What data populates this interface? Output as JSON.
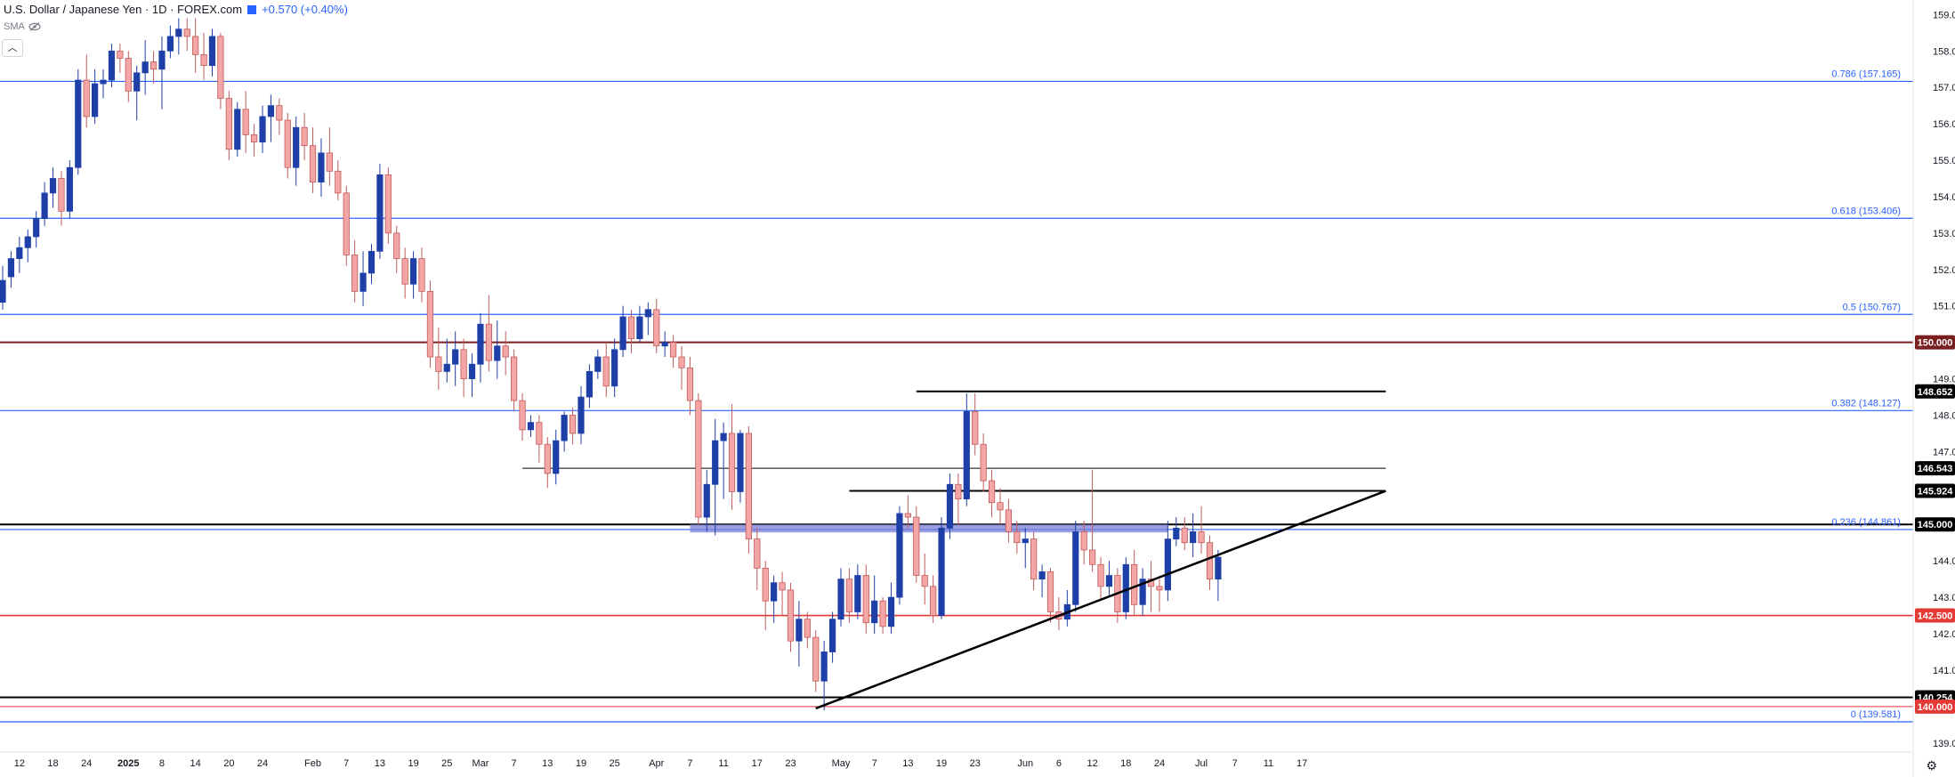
{
  "header": {
    "symbol": "U.S. Dollar / Japanese Yen · 1D · FOREX.com",
    "change": "+0.570 (+0.40%)",
    "indicator": "SMA",
    "collapse_icon": "chevron-up-icon",
    "visibility_icon": "eye-off-icon",
    "settings_icon": "gear-icon"
  },
  "colors": {
    "bull": "#1e3fa8",
    "bear": "#f4a6a6",
    "bear_border": "#c05b5b",
    "fib": "#2962ff",
    "support_red": "#e53935",
    "resistance_dark_red": "#7a1f1f",
    "level_black": "#000000",
    "zone": "#7b7fd6"
  },
  "chart_data": {
    "type": "candlestick",
    "ylim": [
      138.75,
      159.4
    ],
    "yticks": [
      "139.000",
      "140.000",
      "141.000",
      "142.000",
      "143.000",
      "144.000",
      "145.000",
      "146.000",
      "147.000",
      "148.000",
      "149.000",
      "150.000",
      "151.000",
      "152.000",
      "153.000",
      "154.000",
      "155.000",
      "156.000",
      "157.000",
      "158.000",
      "159.000"
    ],
    "xticks": [
      {
        "label": "12",
        "i": 2
      },
      {
        "label": "18",
        "i": 6
      },
      {
        "label": "24",
        "i": 10
      },
      {
        "label": "2025",
        "i": 15,
        "bold": true
      },
      {
        "label": "8",
        "i": 19
      },
      {
        "label": "14",
        "i": 23
      },
      {
        "label": "20",
        "i": 27
      },
      {
        "label": "24",
        "i": 31
      },
      {
        "label": "Feb",
        "i": 37
      },
      {
        "label": "7",
        "i": 41
      },
      {
        "label": "13",
        "i": 45
      },
      {
        "label": "19",
        "i": 49
      },
      {
        "label": "25",
        "i": 53
      },
      {
        "label": "Mar",
        "i": 57
      },
      {
        "label": "7",
        "i": 61
      },
      {
        "label": "13",
        "i": 65
      },
      {
        "label": "19",
        "i": 69
      },
      {
        "label": "25",
        "i": 73
      },
      {
        "label": "Apr",
        "i": 78
      },
      {
        "label": "7",
        "i": 82
      },
      {
        "label": "11",
        "i": 86
      },
      {
        "label": "17",
        "i": 90
      },
      {
        "label": "23",
        "i": 94
      },
      {
        "label": "May",
        "i": 100
      },
      {
        "label": "7",
        "i": 104
      },
      {
        "label": "13",
        "i": 108
      },
      {
        "label": "19",
        "i": 112
      },
      {
        "label": "23",
        "i": 116
      },
      {
        "label": "Jun",
        "i": 122
      },
      {
        "label": "6",
        "i": 126
      },
      {
        "label": "12",
        "i": 130
      },
      {
        "label": "18",
        "i": 134
      },
      {
        "label": "24",
        "i": 138
      },
      {
        "label": "Jul",
        "i": 143
      },
      {
        "label": "7",
        "i": 147
      },
      {
        "label": "11",
        "i": 151
      },
      {
        "label": "17",
        "i": 155
      }
    ],
    "candles": [
      [
        151.1,
        151.7,
        150.9,
        152.1
      ],
      [
        151.8,
        152.3,
        151.5,
        152.5
      ],
      [
        152.3,
        152.6,
        151.9,
        152.9
      ],
      [
        152.6,
        152.9,
        152.2,
        153.1
      ],
      [
        152.9,
        153.4,
        152.6,
        153.6
      ],
      [
        153.4,
        154.1,
        153.2,
        154.4
      ],
      [
        154.1,
        154.5,
        153.7,
        154.8
      ],
      [
        154.5,
        153.6,
        153.2,
        154.7
      ],
      [
        153.6,
        154.8,
        153.4,
        155.0
      ],
      [
        154.8,
        157.2,
        154.6,
        157.5
      ],
      [
        157.2,
        156.2,
        155.9,
        157.9
      ],
      [
        156.2,
        157.1,
        156.0,
        157.5
      ],
      [
        157.1,
        157.2,
        156.7,
        157.5
      ],
      [
        157.2,
        158.0,
        157.0,
        158.2
      ],
      [
        158.0,
        157.8,
        157.4,
        158.2
      ],
      [
        157.8,
        156.9,
        156.6,
        158.0
      ],
      [
        156.9,
        157.4,
        156.1,
        157.6
      ],
      [
        157.4,
        157.7,
        156.8,
        158.3
      ],
      [
        157.7,
        157.5,
        157.1,
        158.0
      ],
      [
        157.5,
        158.0,
        156.4,
        158.4
      ],
      [
        158.0,
        158.4,
        157.8,
        158.7
      ],
      [
        158.4,
        158.6,
        157.9,
        158.9
      ],
      [
        158.6,
        158.4,
        158.0,
        158.9
      ],
      [
        158.4,
        157.9,
        157.4,
        158.9
      ],
      [
        157.9,
        157.6,
        157.2,
        158.5
      ],
      [
        157.6,
        158.4,
        157.3,
        158.6
      ],
      [
        158.4,
        156.7,
        156.4,
        158.5
      ],
      [
        156.7,
        155.3,
        155.0,
        156.9
      ],
      [
        155.3,
        156.4,
        155.1,
        156.6
      ],
      [
        156.4,
        155.7,
        155.2,
        156.9
      ],
      [
        155.7,
        155.5,
        155.1,
        156.0
      ],
      [
        155.5,
        156.2,
        155.2,
        156.5
      ],
      [
        156.2,
        156.5,
        155.5,
        156.8
      ],
      [
        156.5,
        156.1,
        155.7,
        156.7
      ],
      [
        156.1,
        154.8,
        154.5,
        156.3
      ],
      [
        154.8,
        155.9,
        154.3,
        156.2
      ],
      [
        155.9,
        155.4,
        155.0,
        156.3
      ],
      [
        155.4,
        154.4,
        154.1,
        155.9
      ],
      [
        154.4,
        155.2,
        154.0,
        155.6
      ],
      [
        155.2,
        154.7,
        154.3,
        155.9
      ],
      [
        154.7,
        154.1,
        153.9,
        155.0
      ],
      [
        154.1,
        152.4,
        152.1,
        154.3
      ],
      [
        152.4,
        151.4,
        151.1,
        152.8
      ],
      [
        151.4,
        151.9,
        151.0,
        152.5
      ],
      [
        151.9,
        152.5,
        151.6,
        152.7
      ],
      [
        152.5,
        154.6,
        152.3,
        154.9
      ],
      [
        154.6,
        153.0,
        152.7,
        154.8
      ],
      [
        153.0,
        152.3,
        151.9,
        153.2
      ],
      [
        152.3,
        151.6,
        151.2,
        152.6
      ],
      [
        151.6,
        152.3,
        151.2,
        152.5
      ],
      [
        152.3,
        151.4,
        151.1,
        152.6
      ],
      [
        151.4,
        149.6,
        149.3,
        151.7
      ],
      [
        149.6,
        149.2,
        148.7,
        150.4
      ],
      [
        149.2,
        149.4,
        148.9,
        150.1
      ],
      [
        149.4,
        149.8,
        148.8,
        150.3
      ],
      [
        149.8,
        149.0,
        148.5,
        150.1
      ],
      [
        149.0,
        149.4,
        148.5,
        149.7
      ],
      [
        149.4,
        150.5,
        148.9,
        150.8
      ],
      [
        150.5,
        149.5,
        149.2,
        151.3
      ],
      [
        149.5,
        149.9,
        149.0,
        150.6
      ],
      [
        149.9,
        149.6,
        149.1,
        150.3
      ],
      [
        149.6,
        148.4,
        148.1,
        149.8
      ],
      [
        148.4,
        147.6,
        147.3,
        148.6
      ],
      [
        147.6,
        147.8,
        147.4,
        148.0
      ],
      [
        147.8,
        147.2,
        146.7,
        148.0
      ],
      [
        147.2,
        146.4,
        146.0,
        147.4
      ],
      [
        146.4,
        147.3,
        146.1,
        147.6
      ],
      [
        147.3,
        148.0,
        147.0,
        148.1
      ],
      [
        148.0,
        147.5,
        147.2,
        148.2
      ],
      [
        147.5,
        148.5,
        147.2,
        148.8
      ],
      [
        148.5,
        149.2,
        148.2,
        149.4
      ],
      [
        149.2,
        149.6,
        149.0,
        149.8
      ],
      [
        149.6,
        148.8,
        148.5,
        150.0
      ],
      [
        148.8,
        149.8,
        148.5,
        150.1
      ],
      [
        149.8,
        150.7,
        149.6,
        151.0
      ],
      [
        150.7,
        150.1,
        149.7,
        150.9
      ],
      [
        150.1,
        150.7,
        150.0,
        151.0
      ],
      [
        150.7,
        150.9,
        150.2,
        151.1
      ],
      [
        150.9,
        149.9,
        149.7,
        151.2
      ],
      [
        149.9,
        150.0,
        149.6,
        150.3
      ],
      [
        150.0,
        149.6,
        149.3,
        150.2
      ],
      [
        149.6,
        149.3,
        148.7,
        149.9
      ],
      [
        149.3,
        148.4,
        148.0,
        149.6
      ],
      [
        148.4,
        145.2,
        145.0,
        148.6
      ],
      [
        145.2,
        146.1,
        144.8,
        146.5
      ],
      [
        146.1,
        147.3,
        144.7,
        147.9
      ],
      [
        147.3,
        147.5,
        145.7,
        147.8
      ],
      [
        147.5,
        145.9,
        145.4,
        148.3
      ],
      [
        145.9,
        147.5,
        145.6,
        147.6
      ],
      [
        147.5,
        144.6,
        144.2,
        147.7
      ],
      [
        144.6,
        143.8,
        143.2,
        144.9
      ],
      [
        143.8,
        142.9,
        142.1,
        144.0
      ],
      [
        142.9,
        143.4,
        142.3,
        143.6
      ],
      [
        143.4,
        143.2,
        142.5,
        143.7
      ],
      [
        143.2,
        141.8,
        141.5,
        143.4
      ],
      [
        141.8,
        142.4,
        141.1,
        142.9
      ],
      [
        142.4,
        141.9,
        141.6,
        142.6
      ],
      [
        141.9,
        140.7,
        140.4,
        142.1
      ],
      [
        140.7,
        141.5,
        139.9,
        141.8
      ],
      [
        141.5,
        142.4,
        141.2,
        142.6
      ],
      [
        142.4,
        143.5,
        142.2,
        143.8
      ],
      [
        143.5,
        142.6,
        142.3,
        143.8
      ],
      [
        142.6,
        143.6,
        142.4,
        143.9
      ],
      [
        143.6,
        142.3,
        142.0,
        143.9
      ],
      [
        142.3,
        142.9,
        142.0,
        143.6
      ],
      [
        142.9,
        142.2,
        142.0,
        143.0
      ],
      [
        142.2,
        143.0,
        142.0,
        143.4
      ],
      [
        143.0,
        145.3,
        142.8,
        145.5
      ],
      [
        145.3,
        145.2,
        144.9,
        145.8
      ],
      [
        145.2,
        143.6,
        143.4,
        145.5
      ],
      [
        143.6,
        143.3,
        142.8,
        144.2
      ],
      [
        143.3,
        142.5,
        142.3,
        143.6
      ],
      [
        142.5,
        144.9,
        142.4,
        145.2
      ],
      [
        144.9,
        146.1,
        144.6,
        146.4
      ],
      [
        146.1,
        145.7,
        145.0,
        146.4
      ],
      [
        145.7,
        148.1,
        145.5,
        148.6
      ],
      [
        148.1,
        147.2,
        146.9,
        148.6
      ],
      [
        147.2,
        146.2,
        145.9,
        147.5
      ],
      [
        146.2,
        145.6,
        145.2,
        146.5
      ],
      [
        145.6,
        145.4,
        145.0,
        146.0
      ],
      [
        145.4,
        144.8,
        144.5,
        145.7
      ],
      [
        144.8,
        144.5,
        144.2,
        145.1
      ],
      [
        144.5,
        144.6,
        143.8,
        144.9
      ],
      [
        144.6,
        143.5,
        143.2,
        144.8
      ],
      [
        143.5,
        143.7,
        143.0,
        143.9
      ],
      [
        143.7,
        142.6,
        142.3,
        143.8
      ],
      [
        142.6,
        142.4,
        142.1,
        143.0
      ],
      [
        142.4,
        142.8,
        142.2,
        143.2
      ],
      [
        142.8,
        144.8,
        142.6,
        145.1
      ],
      [
        144.8,
        144.3,
        143.9,
        145.1
      ],
      [
        144.3,
        143.9,
        143.7,
        146.5
      ],
      [
        143.9,
        143.3,
        142.9,
        144.1
      ],
      [
        143.3,
        143.6,
        143.0,
        144.0
      ],
      [
        143.6,
        142.6,
        142.3,
        143.8
      ],
      [
        142.6,
        143.9,
        142.4,
        144.1
      ],
      [
        143.9,
        142.8,
        142.5,
        144.3
      ],
      [
        142.8,
        143.5,
        142.5,
        143.8
      ],
      [
        143.5,
        143.3,
        142.6,
        144.0
      ],
      [
        143.3,
        143.2,
        142.6,
        143.5
      ],
      [
        143.2,
        144.6,
        142.9,
        145.1
      ],
      [
        144.6,
        144.9,
        144.4,
        145.2
      ],
      [
        144.9,
        144.5,
        144.3,
        145.2
      ],
      [
        144.5,
        144.8,
        144.1,
        145.3
      ],
      [
        144.8,
        144.5,
        144.2,
        145.5
      ],
      [
        144.5,
        143.5,
        143.2,
        144.7
      ],
      [
        143.5,
        144.1,
        142.9,
        144.3
      ]
    ],
    "levels": [
      {
        "price": 157.165,
        "style": "fib",
        "label": "0.786 (157.165)"
      },
      {
        "price": 153.406,
        "style": "fib",
        "label": "0.618 (153.406)"
      },
      {
        "price": 150.767,
        "style": "fib",
        "label": "0.5 (150.767)"
      },
      {
        "price": 148.127,
        "style": "fib",
        "label": "0.382 (148.127)"
      },
      {
        "price": 144.861,
        "style": "fib",
        "label": "0.236 (144.861)"
      },
      {
        "price": 139.581,
        "style": "fib",
        "label": "0 (139.581)"
      },
      {
        "price": 150.0,
        "style": "darkred",
        "axis_label": "150.000"
      },
      {
        "price": 142.5,
        "style": "red",
        "axis_label": "142.500"
      },
      {
        "price": 145.0,
        "style": "black",
        "axis_label": "145.000"
      },
      {
        "price": 140.254,
        "style": "black",
        "axis_label": "140.254"
      },
      {
        "price": 140.0,
        "style": "redthin",
        "axis_label": "140.000"
      }
    ],
    "segments": [
      {
        "from_i": 109,
        "to_i": 165,
        "price": 148.652,
        "axis_label": "148.652",
        "width": 2
      },
      {
        "from_i": 62,
        "to_i": 165,
        "price": 146.543,
        "axis_label": "146.543",
        "width": 1
      },
      {
        "from_i": 101,
        "to_i": 165,
        "price": 145.924,
        "axis_label": "145.924",
        "width": 2
      }
    ],
    "trendline": {
      "from": [
        97,
        139.95
      ],
      "to": [
        165,
        145.92
      ]
    },
    "zone": {
      "from_i": 82,
      "to_i": 139,
      "low": 144.78,
      "high": 145.0
    }
  }
}
